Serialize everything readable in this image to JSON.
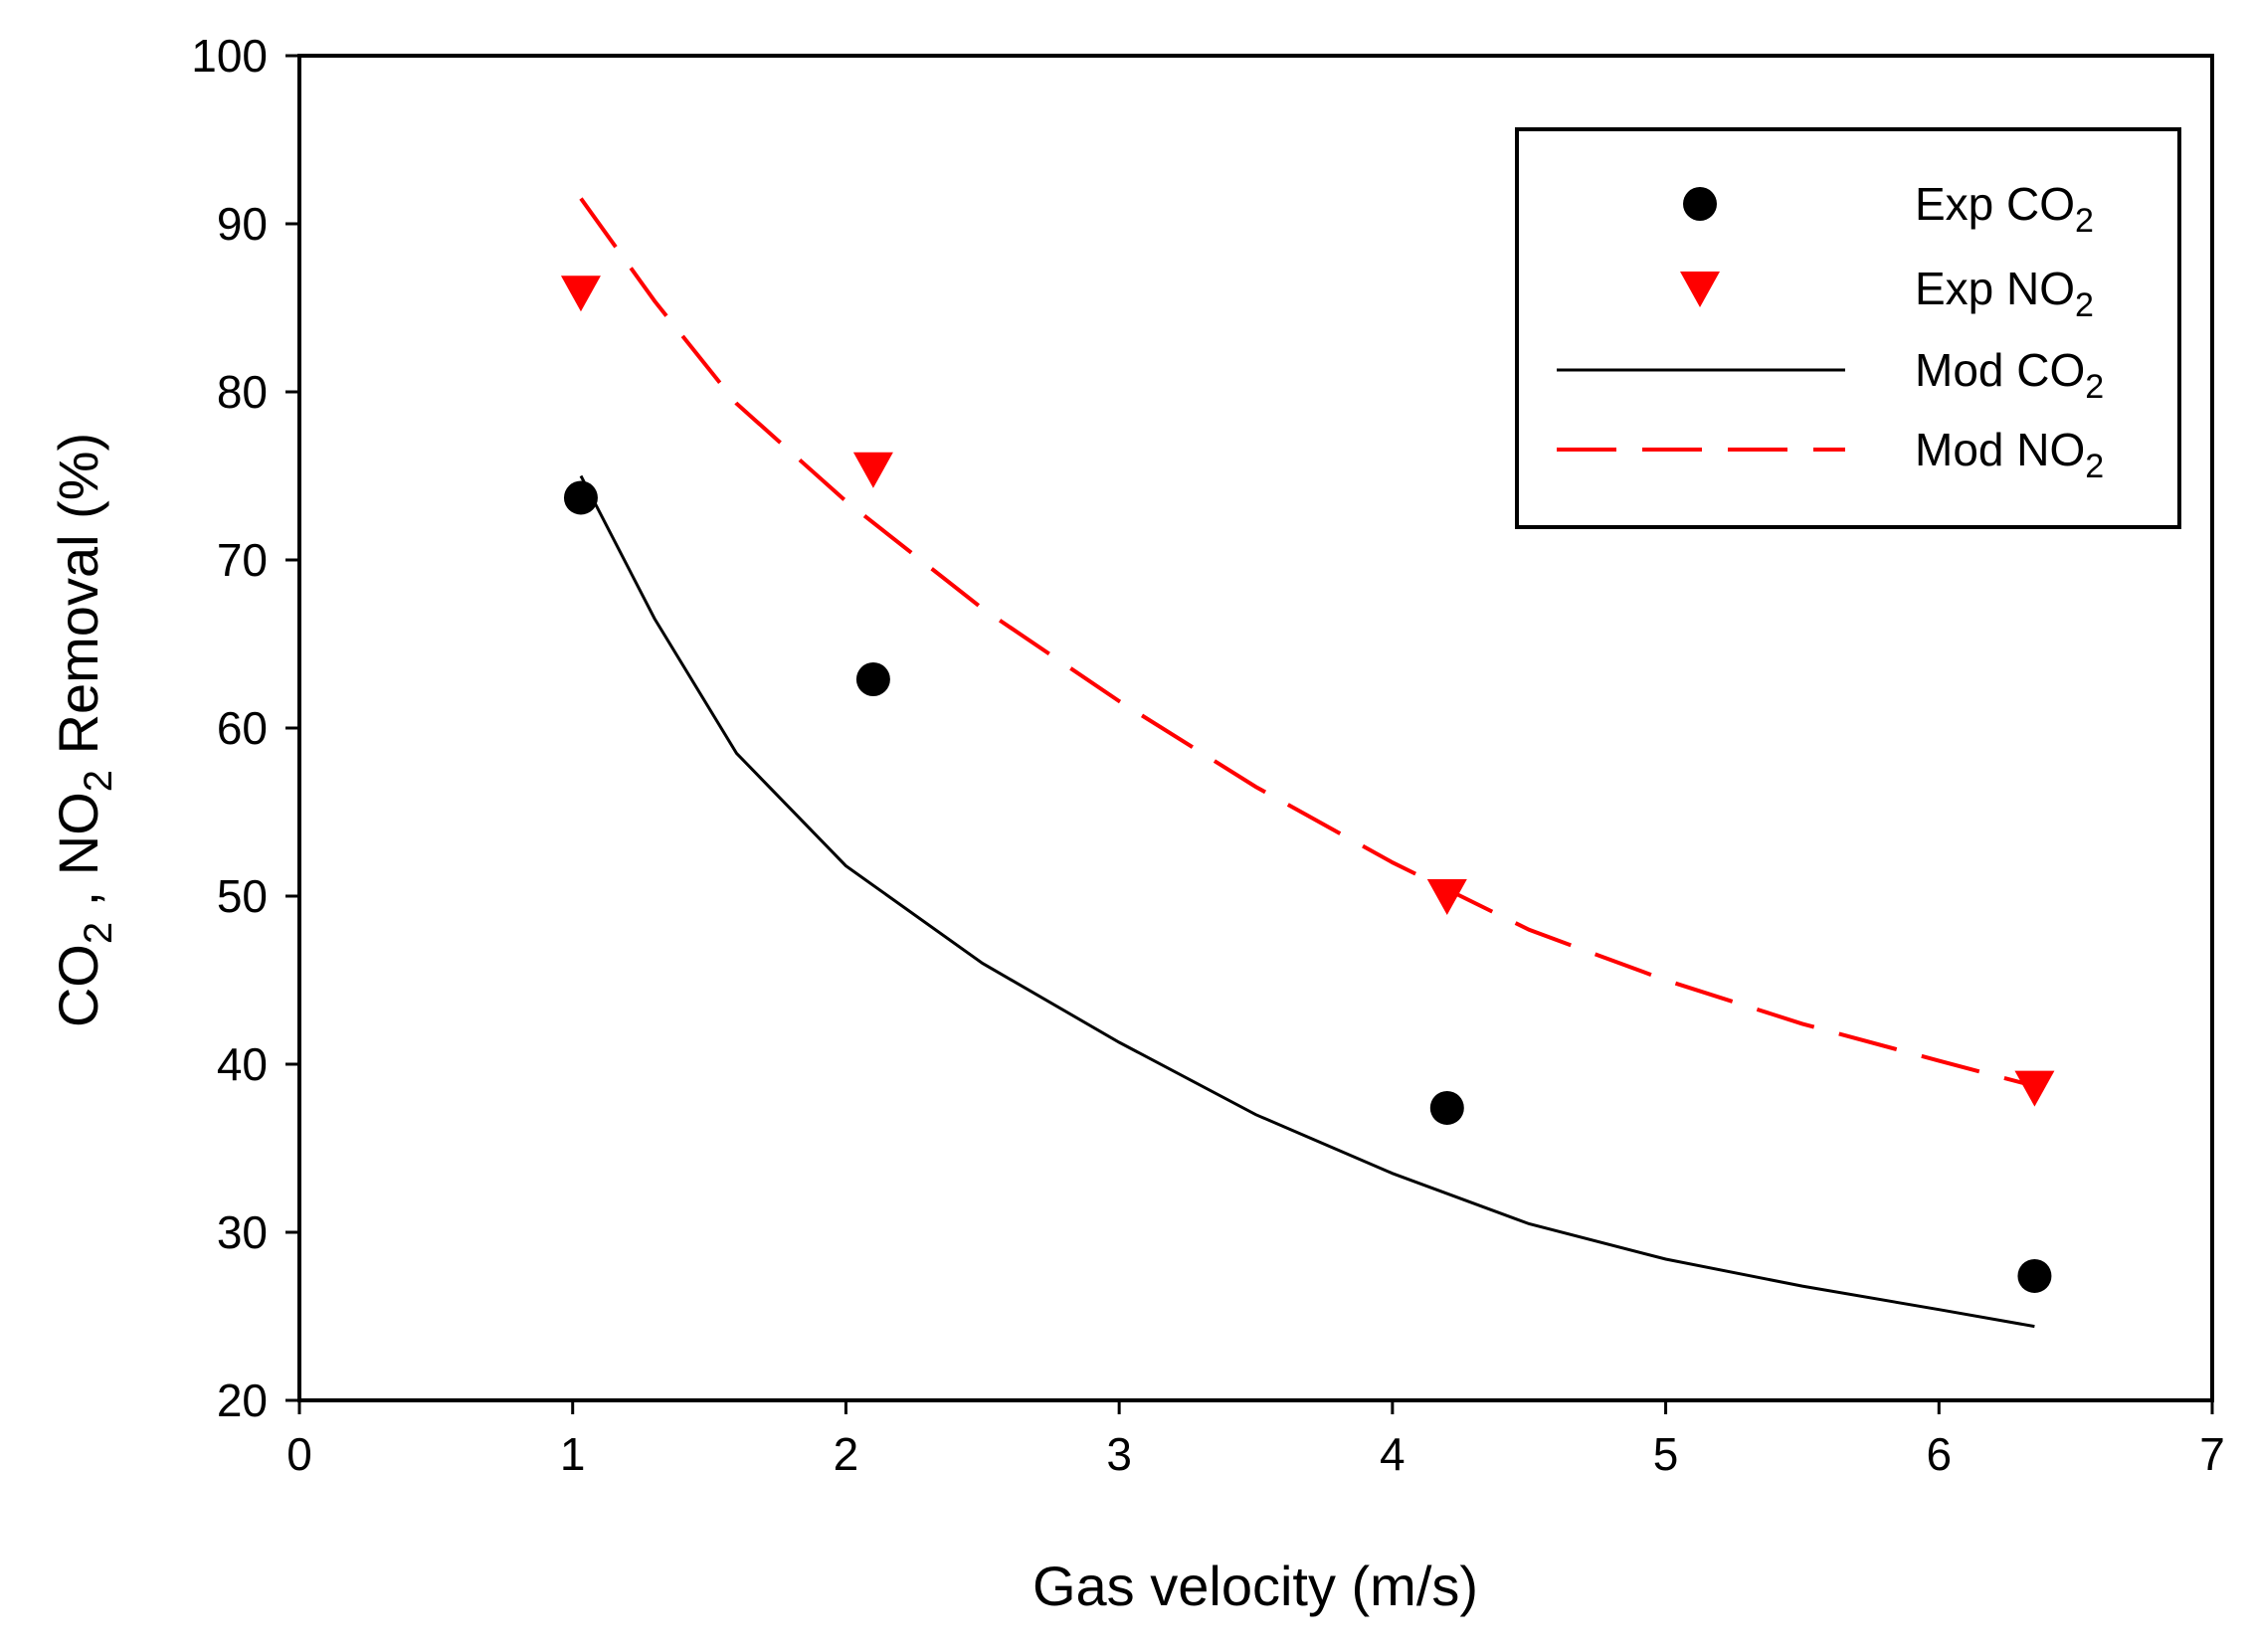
{
  "chart_data": {
    "type": "scatter",
    "title": "",
    "xlabel": "Gas velocity (m/s)",
    "ylabel": "CO₂ , NO₂ Removal (%)",
    "xlim": [
      0,
      7
    ],
    "ylim": [
      20,
      100
    ],
    "xticks": [
      0,
      1,
      2,
      3,
      4,
      5,
      6,
      7
    ],
    "yticks": [
      20,
      30,
      40,
      50,
      60,
      70,
      80,
      90,
      100
    ],
    "legend_position": "top-right",
    "legend": [
      {
        "label": "Exp CO₂",
        "kind": "marker-circle",
        "color": "#000000"
      },
      {
        "label": "Exp NO₂",
        "kind": "marker-triangle-down",
        "color": "#ff0000"
      },
      {
        "label": "Mod CO₂",
        "kind": "line-solid",
        "color": "#000000"
      },
      {
        "label": "Mod NO₂",
        "kind": "line-dashed",
        "color": "#ff0000"
      }
    ],
    "series": [
      {
        "name": "Exp CO₂",
        "style": "marker-circle",
        "color": "#000000",
        "x": [
          1.03,
          2.1,
          4.2,
          6.35
        ],
        "y": [
          73.7,
          62.9,
          37.4,
          27.4
        ]
      },
      {
        "name": "Exp NO₂",
        "style": "marker-triangle-down",
        "color": "#ff0000",
        "x": [
          1.03,
          2.1,
          4.2,
          6.35
        ],
        "y": [
          85.9,
          75.4,
          50.0,
          38.6
        ]
      },
      {
        "name": "Mod CO₂",
        "style": "line-solid",
        "color": "#000000",
        "x": [
          1.03,
          1.3,
          1.6,
          2.0,
          2.5,
          3.0,
          3.5,
          4.0,
          4.5,
          5.0,
          5.5,
          6.0,
          6.35
        ],
        "y": [
          75.0,
          66.5,
          58.5,
          51.8,
          46.0,
          41.3,
          37.0,
          33.5,
          30.5,
          28.4,
          26.8,
          25.4,
          24.4
        ]
      },
      {
        "name": "Mod NO₂",
        "style": "line-dashed",
        "color": "#ff0000",
        "x": [
          1.03,
          1.3,
          1.6,
          2.0,
          2.5,
          3.0,
          3.5,
          4.0,
          4.5,
          5.0,
          5.5,
          6.0,
          6.35
        ],
        "y": [
          91.5,
          85.4,
          79.3,
          73.5,
          67.1,
          61.6,
          56.5,
          52.0,
          48.0,
          45.0,
          42.4,
          40.2,
          38.7
        ]
      }
    ]
  }
}
